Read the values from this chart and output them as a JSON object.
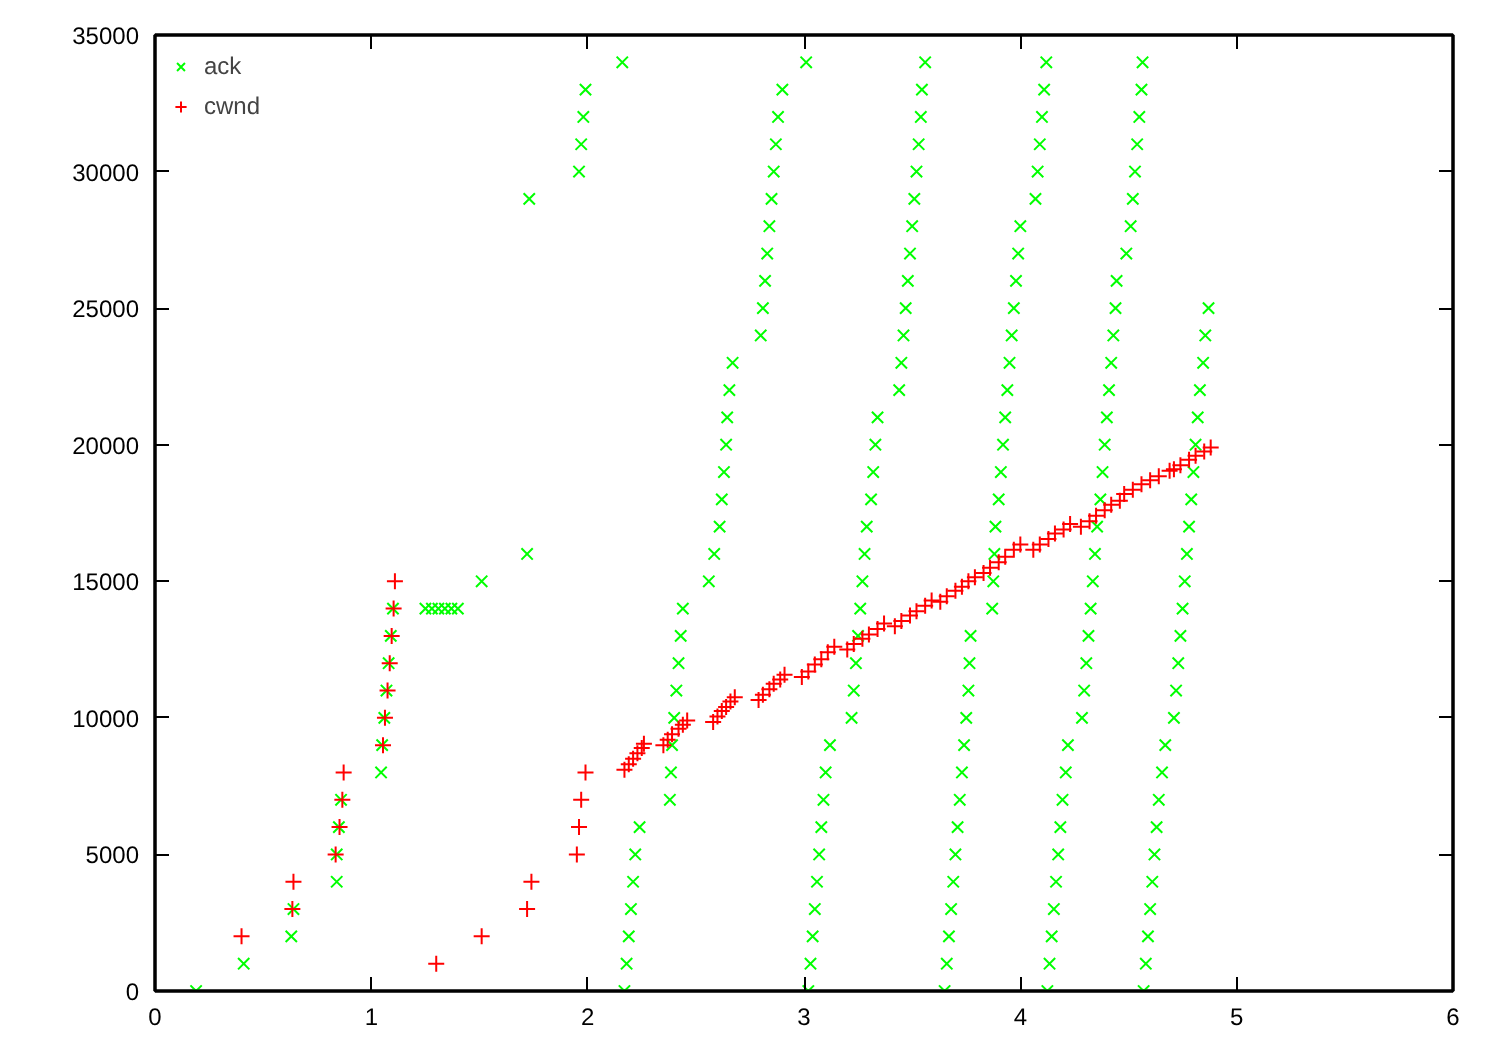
{
  "chart_data": {
    "type": "scatter",
    "xlim": [
      0,
      6
    ],
    "ylim": [
      0,
      35000
    ],
    "xticks": [
      0,
      1,
      2,
      3,
      4,
      5,
      6
    ],
    "yticks": [
      0,
      5000,
      10000,
      15000,
      20000,
      25000,
      30000,
      35000
    ],
    "grid": false,
    "legend": "top left",
    "series": [
      {
        "name": "ack",
        "color": "#00ff00",
        "marker": "x",
        "x": [
          0.19,
          0.41,
          0.63,
          0.64,
          0.84,
          0.84,
          0.85,
          0.86,
          1.045,
          1.05,
          1.06,
          1.07,
          1.08,
          1.09,
          1.1,
          1.25,
          1.28,
          1.31,
          1.34,
          1.37,
          1.4,
          1.51,
          1.72,
          1.73,
          1.96,
          1.97,
          1.98,
          1.99,
          2.16,
          2.17,
          2.18,
          2.19,
          2.2,
          2.21,
          2.22,
          2.24,
          2.38,
          2.385,
          2.39,
          2.4,
          2.41,
          2.42,
          2.43,
          2.44,
          2.56,
          2.585,
          2.61,
          2.62,
          2.63,
          2.64,
          2.645,
          2.655,
          2.67,
          2.8,
          2.81,
          2.82,
          2.83,
          2.84,
          2.85,
          2.86,
          2.87,
          2.88,
          2.9,
          3.01,
          3.02,
          3.03,
          3.04,
          3.05,
          3.06,
          3.07,
          3.08,
          3.09,
          3.1,
          3.12,
          3.22,
          3.23,
          3.24,
          3.25,
          3.26,
          3.27,
          3.28,
          3.29,
          3.31,
          3.32,
          3.33,
          3.34,
          3.44,
          3.45,
          3.46,
          3.47,
          3.48,
          3.49,
          3.5,
          3.51,
          3.52,
          3.53,
          3.54,
          3.545,
          3.56,
          3.65,
          3.66,
          3.67,
          3.68,
          3.69,
          3.7,
          3.71,
          3.72,
          3.73,
          3.74,
          3.75,
          3.76,
          3.765,
          3.77,
          3.87,
          3.875,
          3.88,
          3.885,
          3.9,
          3.91,
          3.92,
          3.93,
          3.94,
          3.95,
          3.96,
          3.97,
          3.98,
          3.99,
          4.0,
          4.07,
          4.08,
          4.09,
          4.1,
          4.11,
          4.12,
          4.125,
          4.135,
          4.145,
          4.155,
          4.165,
          4.175,
          4.185,
          4.195,
          4.21,
          4.22,
          4.285,
          4.295,
          4.305,
          4.315,
          4.325,
          4.335,
          4.345,
          4.355,
          4.37,
          4.38,
          4.39,
          4.4,
          4.41,
          4.42,
          4.43,
          4.44,
          4.445,
          4.49,
          4.51,
          4.52,
          4.53,
          4.54,
          4.55,
          4.56,
          4.565,
          4.57,
          4.58,
          4.59,
          4.6,
          4.61,
          4.62,
          4.63,
          4.64,
          4.655,
          4.67,
          4.71,
          4.72,
          4.73,
          4.74,
          4.75,
          4.76,
          4.77,
          4.78,
          4.79,
          4.8,
          4.81,
          4.82,
          4.83,
          4.845,
          4.855,
          4.87
        ],
        "values": [
          0,
          1000,
          2000,
          3000,
          4000,
          5000,
          6000,
          7000,
          8000,
          9000,
          10000,
          11000,
          12000,
          13000,
          14000,
          14000,
          14000,
          14000,
          14000,
          14000,
          14000,
          15000,
          16000,
          29000,
          30000,
          31000,
          32000,
          33000,
          34000,
          0,
          1000,
          2000,
          3000,
          4000,
          5000,
          6000,
          7000,
          8000,
          9000,
          10000,
          11000,
          12000,
          13000,
          14000,
          15000,
          16000,
          17000,
          18000,
          19000,
          20000,
          21000,
          22000,
          23000,
          24000,
          25000,
          26000,
          27000,
          28000,
          29000,
          30000,
          31000,
          32000,
          33000,
          34000,
          0,
          1000,
          2000,
          3000,
          4000,
          5000,
          6000,
          7000,
          8000,
          9000,
          10000,
          11000,
          12000,
          13000,
          14000,
          15000,
          16000,
          17000,
          18000,
          19000,
          20000,
          21000,
          22000,
          23000,
          24000,
          25000,
          26000,
          27000,
          28000,
          29000,
          30000,
          31000,
          32000,
          33000,
          34000,
          0,
          1000,
          2000,
          3000,
          4000,
          5000,
          6000,
          7000,
          8000,
          9000,
          10000,
          11000,
          12000,
          13000,
          14000,
          15000,
          16000,
          17000,
          18000,
          19000,
          20000,
          21000,
          22000,
          23000,
          24000,
          25000,
          26000,
          27000,
          28000,
          29000,
          30000,
          31000,
          32000,
          33000,
          34000,
          0,
          1000,
          2000,
          3000,
          4000,
          5000,
          6000,
          7000,
          8000,
          9000,
          10000,
          11000,
          12000,
          13000,
          14000,
          15000,
          16000,
          17000,
          18000,
          19000,
          20000,
          21000,
          22000,
          23000,
          24000,
          25000,
          26000,
          27000,
          28000,
          29000,
          30000,
          31000,
          32000,
          33000,
          34000,
          0,
          1000,
          2000,
          3000,
          4000,
          5000,
          6000,
          7000,
          8000,
          9000,
          10000,
          11000,
          12000,
          13000,
          14000,
          15000,
          16000,
          17000,
          18000,
          19000,
          20000,
          21000,
          22000,
          23000,
          24000,
          25000
        ]
      },
      {
        "name": "cwnd",
        "color": "#ff0000",
        "marker": "cross",
        "x": [
          0.4,
          0.635,
          0.64,
          0.835,
          0.853,
          0.866,
          0.872,
          1.054,
          1.063,
          1.075,
          1.085,
          1.094,
          1.103,
          1.109,
          1.3,
          1.51,
          1.72,
          1.74,
          1.95,
          1.96,
          1.97,
          1.99,
          2.17,
          2.19,
          2.21,
          2.23,
          2.25,
          2.26,
          2.35,
          2.37,
          2.39,
          2.42,
          2.44,
          2.46,
          2.58,
          2.6,
          2.62,
          2.64,
          2.66,
          2.68,
          2.79,
          2.81,
          2.84,
          2.86,
          2.89,
          2.91,
          2.99,
          3.02,
          3.05,
          3.08,
          3.11,
          3.14,
          3.2,
          3.23,
          3.27,
          3.3,
          3.34,
          3.37,
          3.42,
          3.45,
          3.49,
          3.52,
          3.56,
          3.59,
          3.63,
          3.66,
          3.7,
          3.73,
          3.76,
          3.79,
          3.83,
          3.86,
          3.9,
          3.93,
          3.97,
          4.0,
          4.06,
          4.09,
          4.13,
          4.16,
          4.2,
          4.23,
          4.28,
          4.32,
          4.35,
          4.39,
          4.42,
          4.46,
          4.48,
          4.52,
          4.56,
          4.6,
          4.64,
          4.69,
          4.71,
          4.74,
          4.78,
          4.81,
          4.85,
          4.88
        ],
        "values": [
          2000,
          3000,
          4000,
          5000,
          6000,
          7000,
          8000,
          9000,
          10000,
          11000,
          12000,
          13000,
          14000,
          15000,
          1000,
          2000,
          3000,
          4000,
          5000,
          6000,
          7000,
          8000,
          8100,
          8300,
          8500,
          8700,
          8900,
          9050,
          9000,
          9200,
          9400,
          9600,
          9750,
          9900,
          9850,
          10050,
          10250,
          10400,
          10600,
          10750,
          10650,
          10850,
          11050,
          11250,
          11400,
          11580,
          11500,
          11700,
          11950,
          12150,
          12400,
          12600,
          12500,
          12700,
          12900,
          13050,
          13250,
          13450,
          13350,
          13550,
          13750,
          13900,
          14100,
          14300,
          14250,
          14450,
          14650,
          14800,
          15000,
          15150,
          15300,
          15500,
          15700,
          15900,
          16150,
          16350,
          16150,
          16350,
          16550,
          16750,
          16900,
          17100,
          17000,
          17200,
          17400,
          17600,
          17800,
          17950,
          18200,
          18350,
          18550,
          18700,
          18850,
          19050,
          19100,
          19250,
          19450,
          19600,
          19750,
          19900
        ]
      }
    ]
  }
}
